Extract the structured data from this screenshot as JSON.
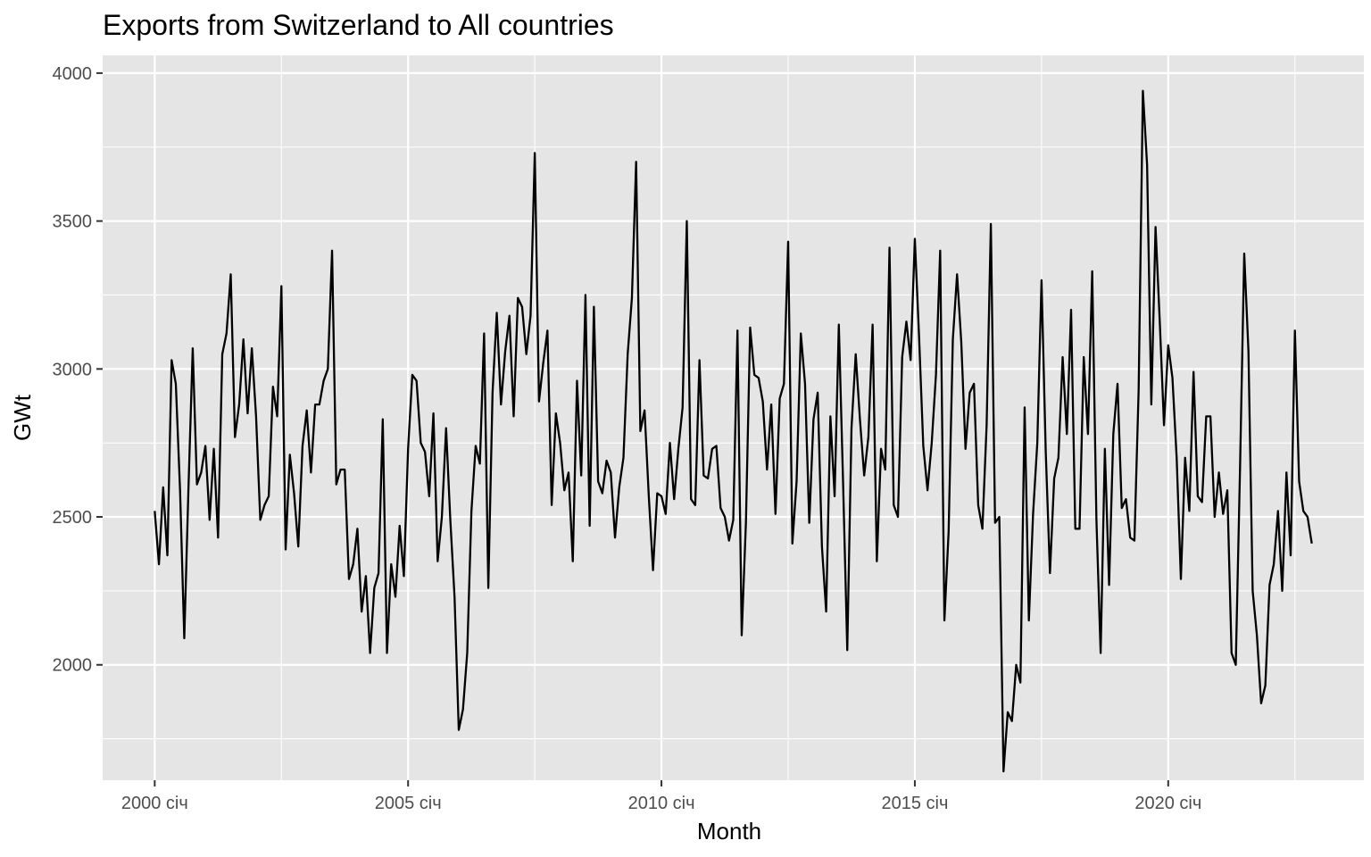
{
  "chart_data": {
    "type": "line",
    "title": "Exports from Switzerland to All countries",
    "xlabel": "Month",
    "ylabel": "GWt",
    "x_start": "2000-01",
    "x_end": "2022-11",
    "x_ticks": [
      {
        "date": "2000-01",
        "label": "2000 січ"
      },
      {
        "date": "2005-01",
        "label": "2005 січ"
      },
      {
        "date": "2010-01",
        "label": "2010 січ"
      },
      {
        "date": "2015-01",
        "label": "2015 січ"
      },
      {
        "date": "2020-01",
        "label": "2020 січ"
      }
    ],
    "y_ticks": [
      2000,
      2500,
      3000,
      3500,
      4000
    ],
    "ylim": [
      1610,
      4060
    ],
    "grid": true,
    "background_color": "#e5e5e5",
    "grid_color": "#ffffff",
    "line_color": "#000000",
    "series": [
      {
        "values": [
          2520,
          2340,
          2600,
          2370,
          3030,
          2950,
          2590,
          2090,
          2600,
          3070,
          2610,
          2650,
          2740,
          2490,
          2730,
          2430,
          3050,
          3120,
          3320,
          2770,
          2880,
          3100,
          2850,
          3070,
          2840,
          2490,
          2540,
          2570,
          2940,
          2840,
          3280,
          2390,
          2710,
          2580,
          2400,
          2740,
          2860,
          2650,
          2880,
          2880,
          2960,
          3000,
          3400,
          2610,
          2660,
          2660,
          2290,
          2340,
          2460,
          2180,
          2300,
          2040,
          2260,
          2310,
          2830,
          2040,
          2340,
          2230,
          2470,
          2300,
          2730,
          2980,
          2960,
          2750,
          2720,
          2570,
          2850,
          2350,
          2500,
          2800,
          2490,
          2230,
          1780,
          1850,
          2040,
          2520,
          2740,
          2680,
          3120,
          2260,
          2920,
          3190,
          2880,
          3060,
          3180,
          2840,
          3240,
          3210,
          3050,
          3180,
          3730,
          2890,
          3020,
          3130,
          2540,
          2850,
          2750,
          2590,
          2650,
          2350,
          2960,
          2640,
          3250,
          2470,
          3210,
          2620,
          2580,
          2690,
          2650,
          2430,
          2600,
          2700,
          3050,
          3240,
          3700,
          2790,
          2860,
          2570,
          2320,
          2580,
          2570,
          2510,
          2750,
          2560,
          2730,
          2870,
          3500,
          2560,
          2540,
          3030,
          2640,
          2630,
          2730,
          2740,
          2530,
          2500,
          2420,
          2490,
          3130,
          2100,
          2480,
          3140,
          2980,
          2970,
          2890,
          2660,
          2880,
          2510,
          2900,
          2950,
          3430,
          2410,
          2620,
          3120,
          2950,
          2480,
          2830,
          2920,
          2400,
          2180,
          2840,
          2570,
          3150,
          2620,
          2050,
          2800,
          3050,
          2830,
          2640,
          2770,
          3150,
          2350,
          2730,
          2660,
          3410,
          2540,
          2500,
          3040,
          3160,
          3030,
          3440,
          3110,
          2740,
          2590,
          2750,
          2980,
          3400,
          2150,
          2450,
          3100,
          3320,
          3090,
          2730,
          2920,
          2950,
          2540,
          2460,
          2810,
          3490,
          2480,
          2500,
          1640,
          1840,
          1810,
          2000,
          1940,
          2870,
          2150,
          2510,
          2750,
          3300,
          2720,
          2310,
          2630,
          2700,
          3040,
          2780,
          3200,
          2460,
          2460,
          3040,
          2780,
          3330,
          2490,
          2040,
          2730,
          2270,
          2780,
          2950,
          2530,
          2560,
          2430,
          2420,
          2930,
          3940,
          3690,
          2880,
          3480,
          3160,
          2810,
          3080,
          2970,
          2700,
          2290,
          2700,
          2520,
          2990,
          2570,
          2550,
          2840,
          2840,
          2500,
          2650,
          2510,
          2590,
          2040,
          2000,
          2660,
          3390,
          3060,
          2250,
          2100,
          1870,
          1930,
          2270,
          2340,
          2520,
          2250,
          2650,
          2370,
          3130,
          2620,
          2520,
          2500,
          2410
        ]
      }
    ]
  }
}
